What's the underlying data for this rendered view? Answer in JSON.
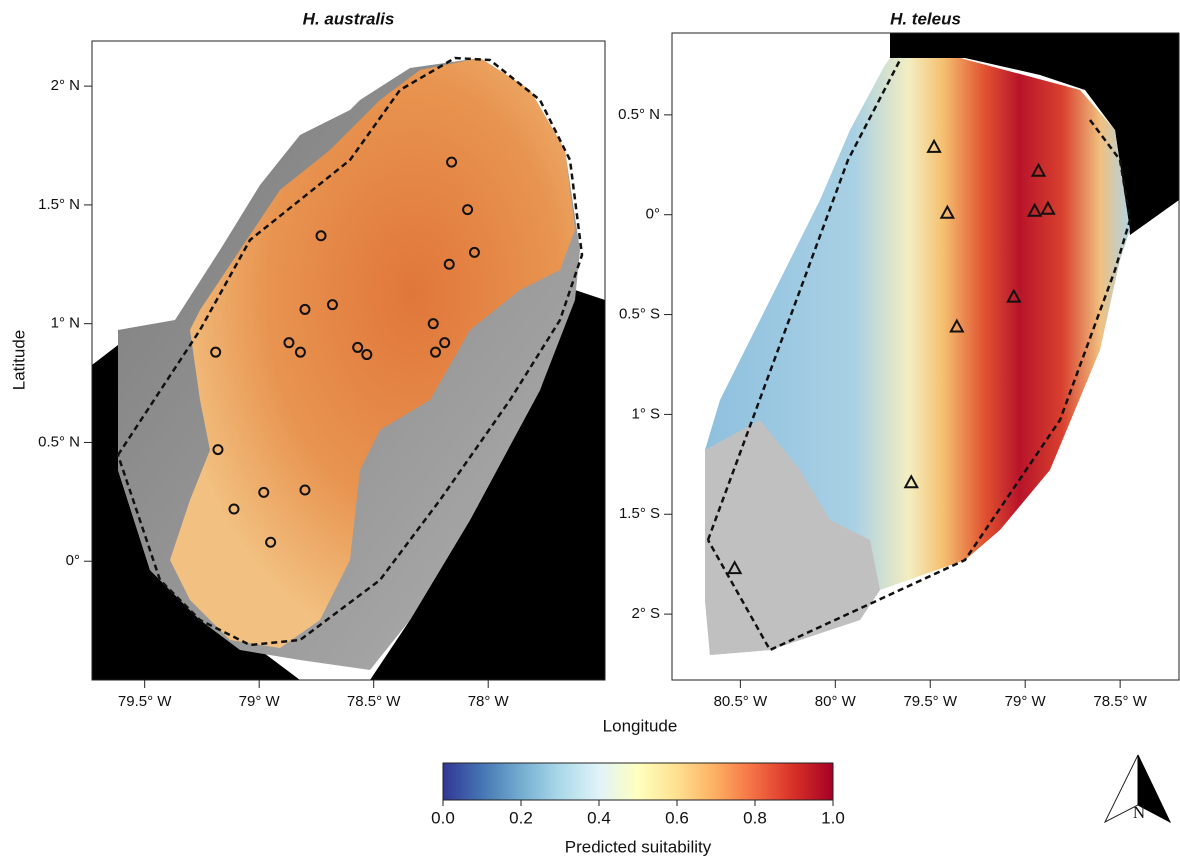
{
  "xlabel": "Longitude",
  "ylabel": "Latitude",
  "panels": [
    {
      "title": "H. australis",
      "marker": "circle",
      "xlim": [
        -79.73,
        -77.49
      ],
      "ylim": [
        -0.5,
        2.19
      ],
      "xticks": [
        {
          "value": -79.5,
          "label": "79.5° W"
        },
        {
          "value": -79,
          "label": "79° W"
        },
        {
          "value": -78.5,
          "label": "78.5° W"
        },
        {
          "value": -78,
          "label": "78° W"
        }
      ],
      "yticks": [
        {
          "value": 0,
          "label": "0°"
        },
        {
          "value": 0.5,
          "label": "0.5° N"
        },
        {
          "value": 1,
          "label": "1° N"
        },
        {
          "value": 1.5,
          "label": "1.5° N"
        },
        {
          "value": 2,
          "label": "2° N"
        }
      ],
      "lon": [
        -78.16,
        -78.09,
        -78.06,
        -78.17,
        -78.73,
        -78.68,
        -78.8,
        -78.87,
        -78.82,
        -78.57,
        -78.53,
        -78.24,
        -78.19,
        -78.23,
        -79.19,
        -79.18,
        -78.98,
        -78.8,
        -79.11,
        -78.95
      ],
      "lat": [
        1.68,
        1.48,
        1.3,
        1.25,
        1.37,
        1.08,
        1.06,
        0.92,
        0.88,
        0.9,
        0.87,
        1.0,
        0.92,
        0.88,
        0.88,
        0.47,
        0.29,
        0.3,
        0.22,
        0.08
      ]
    },
    {
      "title": "H. teleus",
      "marker": "triangle",
      "xlim": [
        -80.86,
        -78.19
      ],
      "ylim": [
        -2.33,
        0.91
      ],
      "xticks": [
        {
          "value": -80.5,
          "label": "80.5° W"
        },
        {
          "value": -80,
          "label": "80° W"
        },
        {
          "value": -79.5,
          "label": "79.5° W"
        },
        {
          "value": -79,
          "label": "79° W"
        },
        {
          "value": -78.5,
          "label": "78.5° W"
        }
      ],
      "yticks": [
        {
          "value": -2,
          "label": "2° S"
        },
        {
          "value": -1.5,
          "label": "1.5° S"
        },
        {
          "value": -1,
          "label": "1° S"
        },
        {
          "value": -0.5,
          "label": "0.5° S"
        },
        {
          "value": 0,
          "label": "0°"
        },
        {
          "value": 0.5,
          "label": "0.5° N"
        }
      ],
      "lon": [
        -79.48,
        -78.93,
        -79.41,
        -78.95,
        -78.88,
        -79.06,
        -79.36,
        -79.6,
        -80.53
      ],
      "lat": [
        0.34,
        0.22,
        0.01,
        0.02,
        0.03,
        -0.41,
        -0.56,
        -1.34,
        -1.77
      ]
    }
  ],
  "colorbar": {
    "label": "Predicted suitability",
    "lim": [
      0,
      1
    ],
    "colors": [
      "#313695",
      "#4575b4",
      "#74add1",
      "#abd9e9",
      "#e0f3f8",
      "#ffffbf",
      "#fee090",
      "#fdae61",
      "#f46d43",
      "#d73027",
      "#a50026"
    ],
    "ticks": [
      {
        "value": 0,
        "label": "0.0"
      },
      0.2,
      0.4,
      0.6,
      0.8,
      {
        "value": 1,
        "label": "1.0"
      }
    ]
  },
  "north_arrow": "N"
}
